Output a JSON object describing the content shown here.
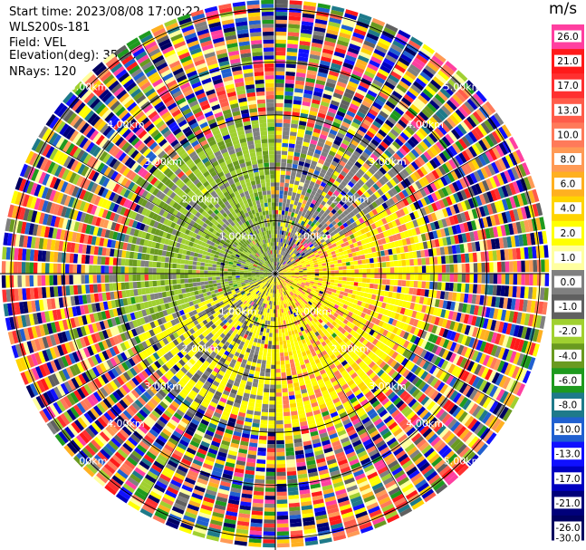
{
  "header": {
    "start_time": "Start time: 2023/08/08 17:00:22",
    "instrument": "WLS200s-181",
    "field": "Field: VEL",
    "elevation": "Elevation(deg): 35.30",
    "nrays": "NRays: 120"
  },
  "colorbar": {
    "unit": "m/s",
    "ticks": [
      "26.0",
      "21.0",
      "17.0",
      "13.0",
      "10.0",
      "8.0",
      "6.0",
      "4.0",
      "2.0",
      "1.0",
      "0.0",
      "-1.0",
      "-2.0",
      "-4.0",
      "-6.0",
      "-8.0",
      "-10.0",
      "-13.0",
      "-17.0",
      "-21.0",
      "-26.0",
      "-30.0"
    ],
    "colors": [
      "#ff3fa0",
      "#ff1a1a",
      "#ff3030",
      "#ff5c4a",
      "#ff7a5a",
      "#ff9a55",
      "#ffb020",
      "#ffd400",
      "#ffff00",
      "#ffffa0",
      "#808080",
      "#606060",
      "#a0d030",
      "#6a9a20",
      "#1e9a1e",
      "#1e7a8a",
      "#2060d0",
      "#1010ff",
      "#0000c0",
      "#00007a",
      "#000060"
    ]
  },
  "chart_data": {
    "type": "heatmap",
    "projection": "polar PPI",
    "field": "VEL",
    "nrays": 120,
    "elevation_deg": 35.3,
    "range_ring_labels": [
      "1.00km",
      "2.00km",
      "3.00km",
      "4.00km",
      "5.00km"
    ],
    "range_rings_km": [
      1,
      2,
      3,
      4,
      5
    ],
    "max_range_km": 5.2,
    "valid_signal_range_km": 3.0,
    "crosshair": true,
    "radial_spokes_deg": [
      0,
      30,
      60,
      90,
      120,
      150,
      180,
      210,
      240,
      270,
      300,
      330
    ],
    "vmin": -30.0,
    "vmax": 26.0
  }
}
